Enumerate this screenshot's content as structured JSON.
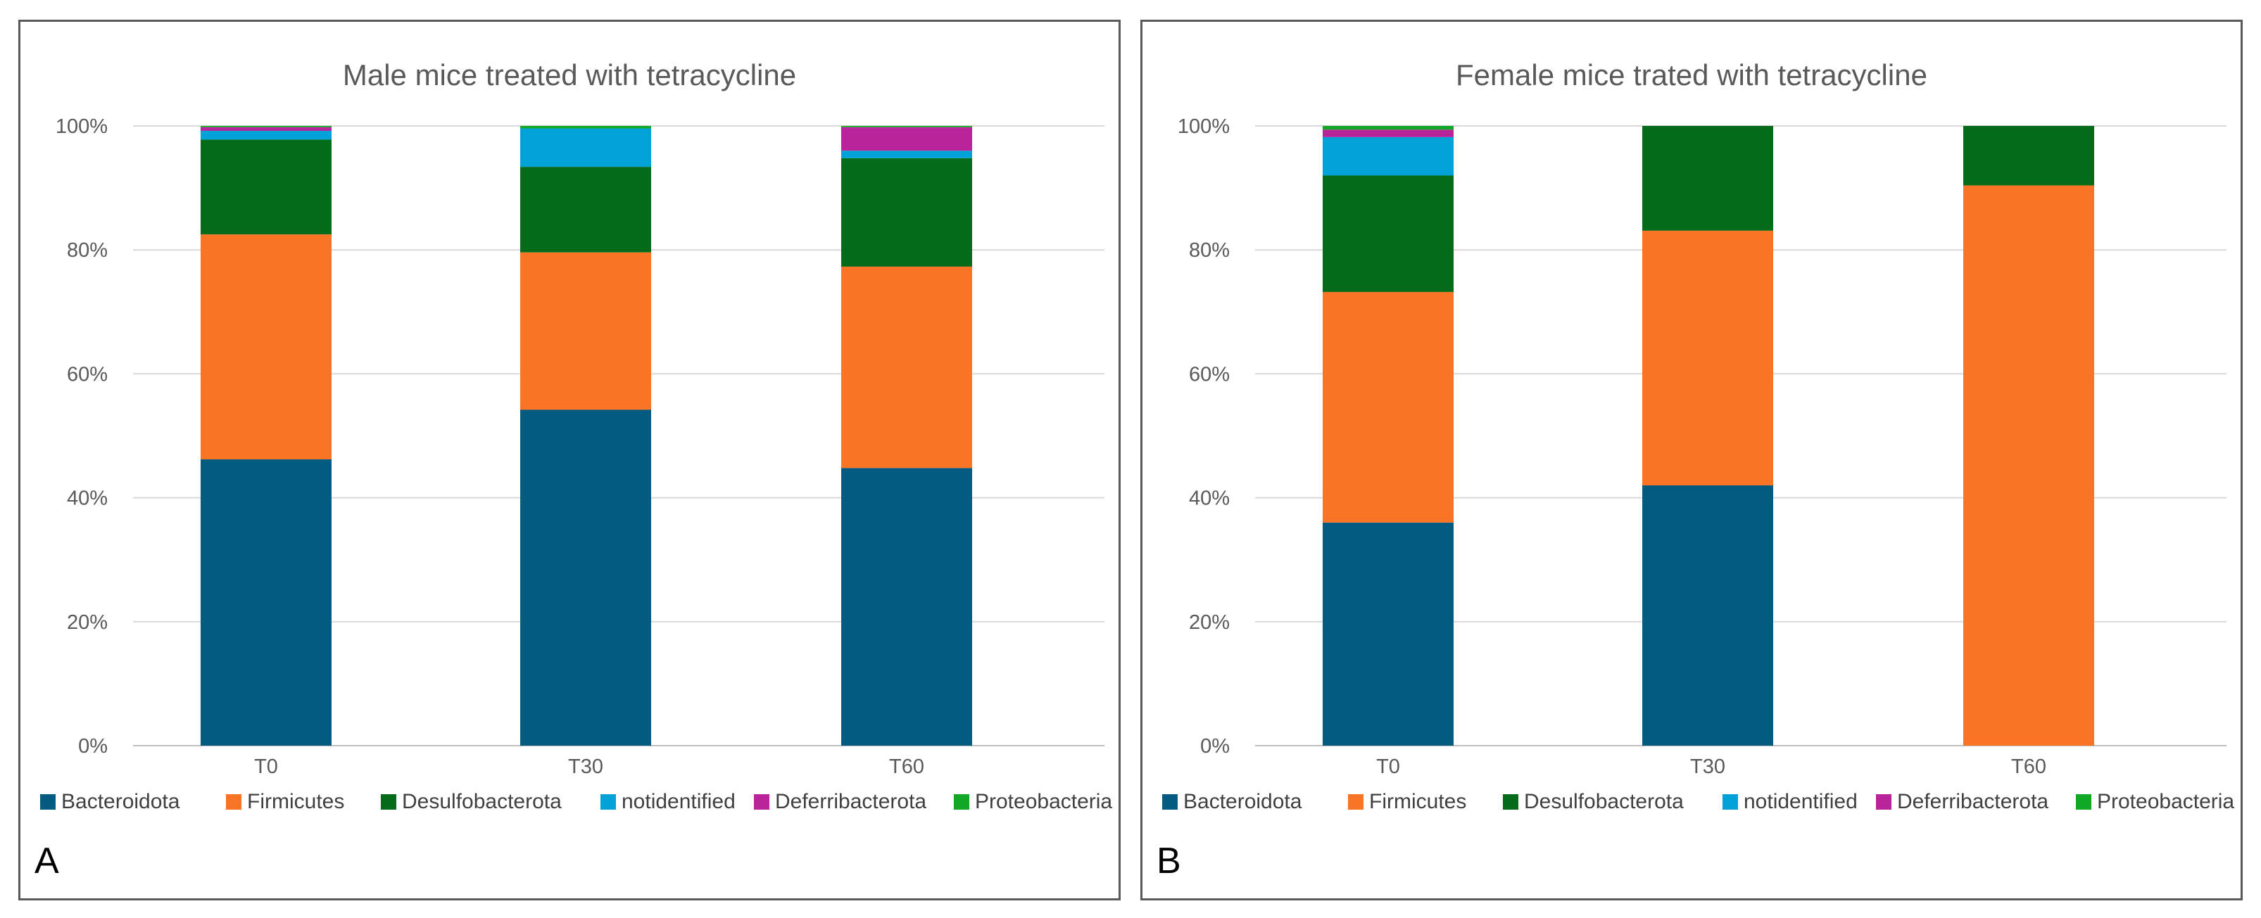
{
  "figure": {
    "panels": [
      {
        "letter": "A"
      },
      {
        "letter": "B"
      }
    ]
  },
  "chart_data": [
    {
      "type": "bar",
      "stacked": true,
      "title": "Male mice treated with tetracycline",
      "categories": [
        "T0",
        "T30",
        "T60"
      ],
      "y_ticks": [
        "0%",
        "20%",
        "40%",
        "60%",
        "80%",
        "100%"
      ],
      "ylim": [
        0,
        100
      ],
      "xlabel": "",
      "ylabel": "",
      "legend_position": "bottom",
      "series": [
        {
          "name": "Bacteroidota",
          "color": "#045B81",
          "values": [
            46.2,
            54.2,
            44.8
          ]
        },
        {
          "name": "Firmicutes",
          "color": "#F97425",
          "values": [
            36.3,
            25.4,
            32.5
          ]
        },
        {
          "name": "Desulfobacterota",
          "color": "#046B1B",
          "values": [
            15.3,
            13.8,
            17.5
          ]
        },
        {
          "name": "notidentified",
          "color": "#02A2D8",
          "values": [
            1.4,
            6.2,
            1.2
          ]
        },
        {
          "name": "Deferribacterota",
          "color": "#B9249B",
          "values": [
            0.6,
            0.0,
            3.8
          ]
        },
        {
          "name": "Proteobacteria",
          "color": "#12A724",
          "values": [
            0.2,
            0.4,
            0.2
          ]
        }
      ]
    },
    {
      "type": "bar",
      "stacked": true,
      "title": "Female mice trated with tetracycline",
      "categories": [
        "T0",
        "T30",
        "T60"
      ],
      "y_ticks": [
        "0%",
        "20%",
        "40%",
        "60%",
        "80%",
        "100%"
      ],
      "ylim": [
        0,
        100
      ],
      "xlabel": "",
      "ylabel": "",
      "legend_position": "bottom",
      "series": [
        {
          "name": "Bacteroidota",
          "color": "#045B81",
          "values": [
            36.0,
            42.0,
            0.0
          ]
        },
        {
          "name": "Firmicutes",
          "color": "#F97425",
          "values": [
            37.2,
            41.1,
            90.4
          ]
        },
        {
          "name": "Desulfobacterota",
          "color": "#046B1B",
          "values": [
            18.8,
            16.9,
            9.6
          ]
        },
        {
          "name": "notidentified",
          "color": "#02A2D8",
          "values": [
            6.2,
            0.0,
            0.0
          ]
        },
        {
          "name": "Deferribacterota",
          "color": "#B9249B",
          "values": [
            1.2,
            0.0,
            0.0
          ]
        },
        {
          "name": "Proteobacteria",
          "color": "#12A724",
          "values": [
            0.6,
            0.0,
            0.0
          ]
        }
      ]
    }
  ]
}
